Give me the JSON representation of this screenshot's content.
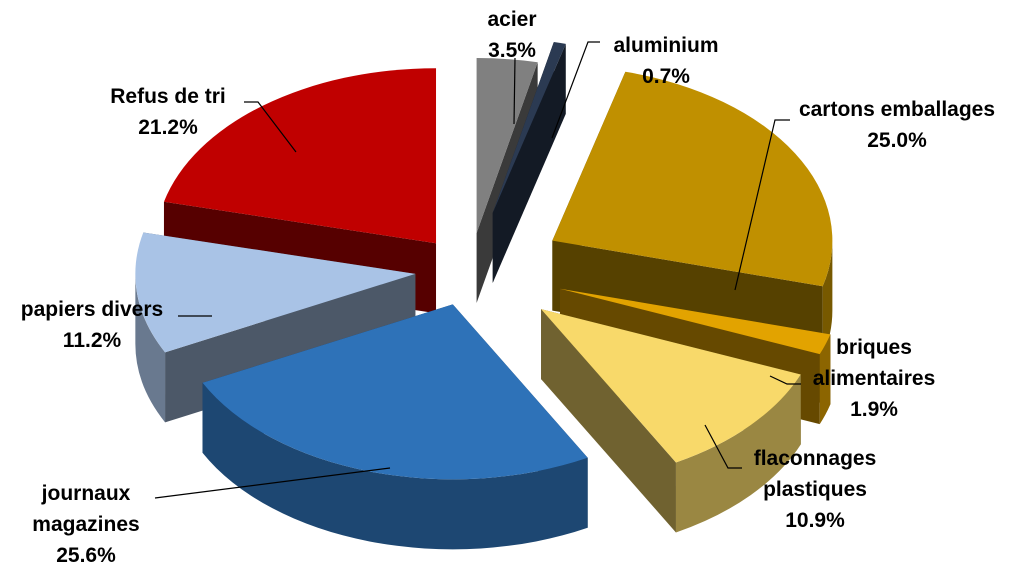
{
  "chart_data": {
    "type": "pie",
    "title": "",
    "style": "exploded 3D pie",
    "slices": [
      {
        "name": "acier",
        "value": 3.5,
        "label": "3.5%",
        "color": "#808080"
      },
      {
        "name": "aluminium",
        "value": 0.7,
        "label": "0.7%",
        "color": "#2b3a52"
      },
      {
        "name": "cartons emballages",
        "value": 25.0,
        "label": "25.0%",
        "color": "#c09000"
      },
      {
        "name": "briques alimentaires",
        "value": 1.9,
        "label": "1.9%",
        "color": "#e2a300"
      },
      {
        "name": "flaconnages plastiques",
        "value": 10.9,
        "label": "10.9%",
        "color": "#f8d96a"
      },
      {
        "name": "journaux magazines",
        "value": 25.6,
        "label": "25.6%",
        "color": "#2e72b8"
      },
      {
        "name": "papiers divers",
        "value": 11.2,
        "label": "11.2%",
        "color": "#a9c3e6"
      },
      {
        "name": "Refus de tri",
        "value": 21.2,
        "label": "21.2%",
        "color": "#c00000"
      }
    ]
  }
}
